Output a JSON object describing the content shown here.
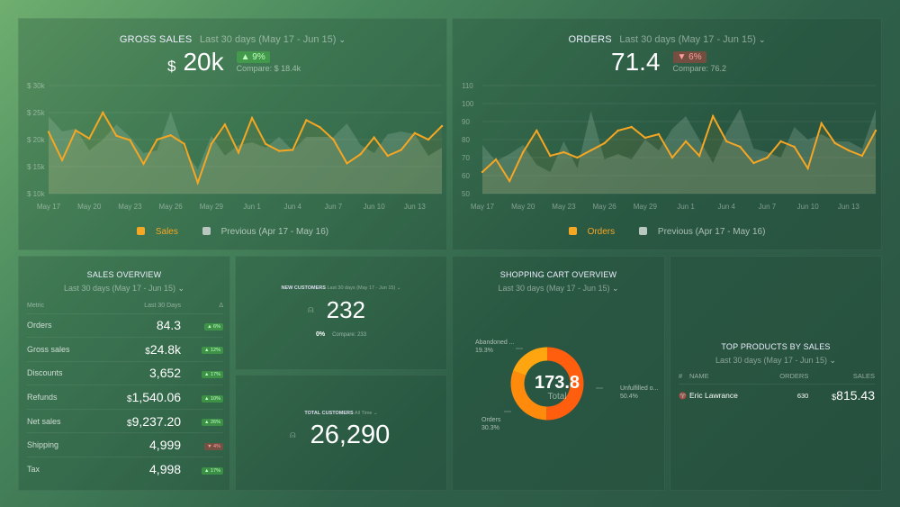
{
  "gross_sales": {
    "title": "GROSS SALES",
    "period": "Last 30 days (May 17 - Jun 15)",
    "currency": "$",
    "value": "20k",
    "delta": "▲ 9%",
    "compare": "Compare: $ 18.4k",
    "legend_current": "Sales",
    "legend_previous": "Previous (Apr 17 - May 16)"
  },
  "orders": {
    "title": "ORDERS",
    "period": "Last 30 days (May 17 - Jun 15)",
    "value": "71.4",
    "delta": "▼ 6%",
    "compare": "Compare: 76.2",
    "legend_current": "Orders",
    "legend_previous": "Previous (Apr 17 - May 16)"
  },
  "colors": {
    "accent": "#f5a623",
    "previous": "#a8c8b0",
    "unfulfilled": "#ff5e0e",
    "orders": "#ff8a0c",
    "abandoned": "#ffa510",
    "up": "#4cb050",
    "down": "#c84040"
  },
  "chart_data": [
    {
      "type": "line",
      "x_ticks": [
        "May 17",
        "May 20",
        "May 23",
        "May 26",
        "May 29",
        "Jun 1",
        "Jun 4",
        "Jun 7",
        "Jun 10",
        "Jun 13"
      ],
      "y_ticks": [
        "$ 10k",
        "$ 15k",
        "$ 20k",
        "$ 25k",
        "$ 30k"
      ],
      "ylim": [
        10,
        30
      ],
      "grid": true,
      "legend": "bottom",
      "series": [
        {
          "name": "Sales",
          "values": [
            21.4,
            16.2,
            21.7,
            20.2,
            25.0,
            20.7,
            19.9,
            15.5,
            20.0,
            20.8,
            19.2,
            12.0,
            19.2,
            22.8,
            17.6,
            24.0,
            19.2,
            17.9,
            18.1,
            23.6,
            22.3,
            20.0,
            15.6,
            17.3,
            20.4,
            17.0,
            18.1,
            21.2,
            20.0,
            22.5
          ]
        },
        {
          "name": "Previous (Apr 17 - May 16)",
          "values": [
            24.3,
            21.5,
            22.0,
            18.0,
            20.0,
            22.8,
            20.5,
            17.5,
            18.0,
            25.2,
            18.0,
            14.5,
            20.7,
            17.0,
            19.0,
            19.5,
            18.5,
            20.5,
            18.0,
            20.5,
            20.5,
            20.5,
            23.0,
            19.0,
            17.5,
            21.0,
            21.5,
            21.0,
            17.0,
            18.5
          ]
        }
      ]
    },
    {
      "type": "line",
      "x_ticks": [
        "May 17",
        "May 20",
        "May 23",
        "May 26",
        "May 29",
        "Jun 1",
        "Jun 4",
        "Jun 7",
        "Jun 10",
        "Jun 13"
      ],
      "y_ticks": [
        "50",
        "60",
        "70",
        "80",
        "90",
        "100",
        "110"
      ],
      "ylim": [
        50,
        110
      ],
      "grid": true,
      "legend": "bottom",
      "series": [
        {
          "name": "Orders",
          "values": [
            62,
            69,
            57,
            73,
            85,
            71,
            73,
            70,
            74,
            78,
            85,
            87,
            81,
            83,
            70,
            79,
            71,
            93,
            79,
            76,
            67,
            70,
            79,
            76,
            64,
            89,
            78,
            74,
            71,
            85
          ]
        },
        {
          "name": "Previous (Apr 17 - May 16)",
          "values": [
            77,
            68,
            72,
            77,
            66,
            62,
            79,
            64,
            96,
            69,
            72,
            69,
            80,
            74,
            86,
            93,
            80,
            67,
            84,
            97,
            75,
            73,
            70,
            87,
            80,
            83,
            79,
            79,
            75,
            97
          ]
        }
      ]
    },
    {
      "type": "pie",
      "title": "SHOPPING CART OVERVIEW",
      "center_value": "173.8",
      "center_label": "Total",
      "slices": [
        {
          "label": "Unfulfilled o...",
          "value": 50.4,
          "pct": "50.4%"
        },
        {
          "label": "Orders",
          "value": 30.3,
          "pct": "30.3%"
        },
        {
          "label": "Abandoned ...",
          "value": 19.3,
          "pct": "19.3%"
        }
      ]
    }
  ],
  "sales_overview": {
    "title": "SALES OVERVIEW",
    "period": "Last 30 days (May 17 - Jun 15)",
    "headers": [
      "Metric",
      "Last 30 Days",
      "Δ"
    ],
    "rows": [
      {
        "metric": "Orders",
        "prefix": "",
        "value": "84.3",
        "delta": "▲ 6%",
        "dir": "up"
      },
      {
        "metric": "Gross sales",
        "prefix": "$",
        "value": "24.8k",
        "delta": "▲ 12%",
        "dir": "up"
      },
      {
        "metric": "Discounts",
        "prefix": "",
        "value": "3,652",
        "delta": "▲ 17%",
        "dir": "up"
      },
      {
        "metric": "Refunds",
        "prefix": "$",
        "value": "1,540.06",
        "delta": "▲ 10%",
        "dir": "up"
      },
      {
        "metric": "Net sales",
        "prefix": "$",
        "value": "9,237.20",
        "delta": "▲ 26%",
        "dir": "up"
      },
      {
        "metric": "Shipping",
        "prefix": "",
        "value": "4,999",
        "delta": "▼ 4%",
        "dir": "down"
      },
      {
        "metric": "Tax",
        "prefix": "",
        "value": "4,998",
        "delta": "▲ 17%",
        "dir": "up"
      }
    ]
  },
  "new_customers": {
    "title": "NEW CUSTOMERS",
    "period": "Last 30 days (May 17 - Jun 15)",
    "value": "232",
    "delta": "0%",
    "compare": "Compare: 233"
  },
  "total_customers": {
    "title": "TOTAL CUSTOMERS",
    "period": "All Time",
    "value": "26,290"
  },
  "shopping_cart": {
    "period": "Last 30 days (May 17 - Jun 15)"
  },
  "top_products": {
    "title": "TOP PRODUCTS BY SALES",
    "period": "Last 30 days (May 17 - Jun 15)",
    "headers": [
      "#",
      "NAME",
      "ORDERS",
      "SALES"
    ],
    "rows": [
      {
        "name": "Eric Lawrance",
        "orders": "630",
        "prefix": "$",
        "sales": "815.43"
      }
    ]
  }
}
